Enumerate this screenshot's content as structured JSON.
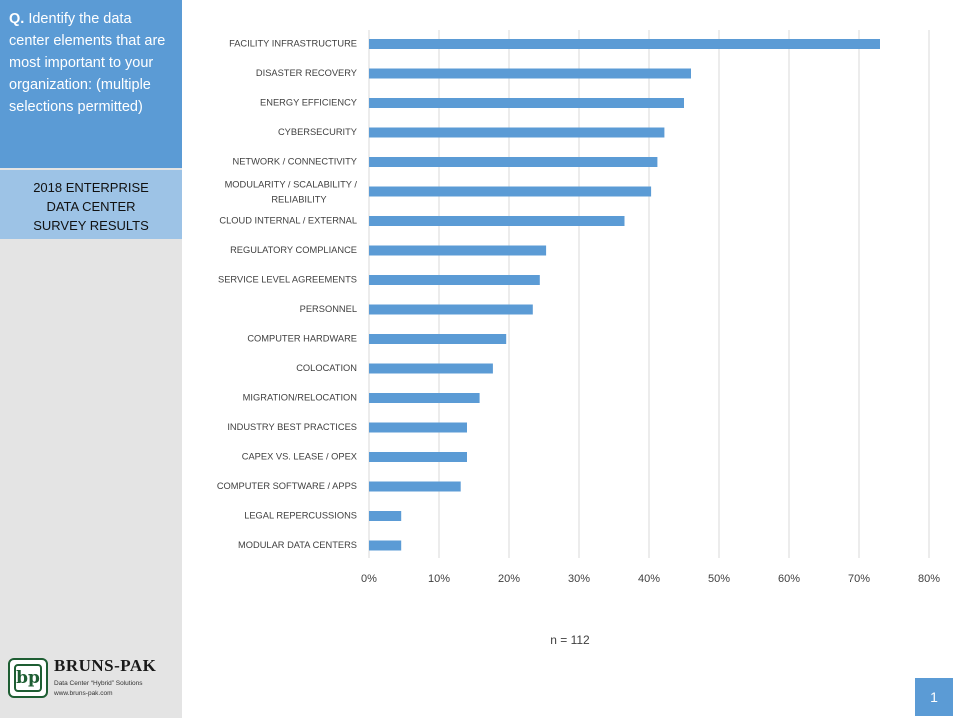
{
  "question": {
    "prefix": "Q.",
    "text": "Identify the data center elements that are most important to your organization: (multiple selections permitted)"
  },
  "survey": {
    "line1": "2018 ENTERPRISE",
    "line2": "DATA CENTER",
    "line3": "SURVEY RESULTS"
  },
  "logo": {
    "mark": "bp",
    "name": "BRUNS-PAK",
    "tagline": "Data Center “Hybrid” Solutions",
    "url": "www.bruns-pak.com"
  },
  "n_label": "n = 112",
  "page_number": "1",
  "colors": {
    "bar": "#5b9bd5",
    "sidebar": "#e4e4e4",
    "question_bg": "#5b9bd5",
    "survey_bg": "#9dc3e6",
    "grid": "#d9d9d9"
  },
  "chart_data": {
    "type": "bar",
    "orientation": "horizontal",
    "categories": [
      [
        "FACILITY INFRASTRUCTURE"
      ],
      [
        "DISASTER RECOVERY"
      ],
      [
        "ENERGY EFFICIENCY"
      ],
      [
        "CYBERSECURITY"
      ],
      [
        "NETWORK / CONNECTIVITY"
      ],
      [
        "MODULARITY / SCALABILITY /",
        "RELIABILITY"
      ],
      [
        "CLOUD INTERNAL / EXTERNAL"
      ],
      [
        "REGULATORY COMPLIANCE"
      ],
      [
        "SERVICE LEVEL AGREEMENTS"
      ],
      [
        "PERSONNEL"
      ],
      [
        "COMPUTER HARDWARE"
      ],
      [
        "COLOCATION"
      ],
      [
        "MIGRATION/RELOCATION"
      ],
      [
        "INDUSTRY BEST PRACTICES"
      ],
      [
        "CAPEX VS. LEASE / OPEX"
      ],
      [
        "COMPUTER SOFTWARE / APPS"
      ],
      [
        "LEGAL REPERCUSSIONS"
      ],
      [
        "MODULAR DATA CENTERS"
      ]
    ],
    "values": [
      73,
      46,
      45,
      42.2,
      41.2,
      40.3,
      36.5,
      25.3,
      24.4,
      23.4,
      19.6,
      17.7,
      15.8,
      14.0,
      14.0,
      13.1,
      4.6,
      4.6
    ],
    "xlim": [
      0,
      80
    ],
    "xticks": [
      "0%",
      "10%",
      "20%",
      "30%",
      "40%",
      "50%",
      "60%",
      "70%",
      "80%"
    ],
    "grid": true,
    "legend": "none"
  }
}
